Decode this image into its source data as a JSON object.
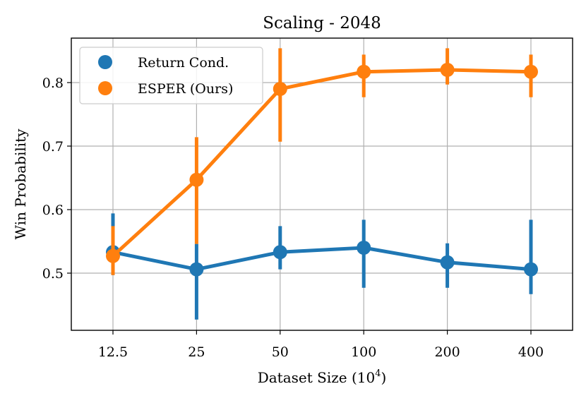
{
  "chart_data": {
    "type": "line",
    "title": "Scaling - 2048",
    "xlabel": "Dataset Size (10",
    "xlabel_sup": "4",
    "xlabel_suffix": ")",
    "ylabel": "Win Probability",
    "categories": [
      "12.5",
      "25",
      "50",
      "100",
      "200",
      "400"
    ],
    "ylim": [
      0.41,
      0.87
    ],
    "yticks": [
      0.5,
      0.6,
      0.7,
      0.8
    ],
    "ytick_labels": [
      "0.5",
      "0.6",
      "0.7",
      "0.8"
    ],
    "grid": true,
    "legend_position": "top-left",
    "series": [
      {
        "name": "Return Cond.",
        "color": "#1f77b4",
        "values": [
          0.533,
          0.506,
          0.533,
          0.54,
          0.517,
          0.506
        ],
        "err_low": [
          0.497,
          0.427,
          0.506,
          0.477,
          0.477,
          0.467
        ],
        "err_high": [
          0.594,
          0.546,
          0.574,
          0.584,
          0.547,
          0.584
        ]
      },
      {
        "name": "ESPER (Ours)",
        "color": "#ff7f0e",
        "values": [
          0.527,
          0.647,
          0.79,
          0.817,
          0.82,
          0.817
        ],
        "err_low": [
          0.497,
          0.546,
          0.707,
          0.777,
          0.797,
          0.777
        ],
        "err_high": [
          0.574,
          0.714,
          0.854,
          0.844,
          0.854,
          0.844
        ]
      }
    ]
  }
}
